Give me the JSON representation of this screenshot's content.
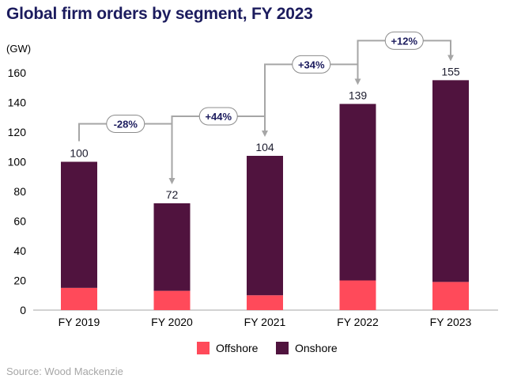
{
  "title": "Global firm orders by segment, FY 2023",
  "source": "Source: Wood Mackenzie",
  "chart_data": {
    "type": "bar",
    "stacked": true,
    "title": "Global firm orders by segment, FY 2023",
    "ylabel": "(GW)",
    "ylim": [
      0,
      160
    ],
    "yticks": [
      0,
      20,
      40,
      60,
      80,
      100,
      120,
      140,
      160
    ],
    "categories": [
      "FY 2019",
      "FY 2020",
      "FY 2021",
      "FY 2022",
      "FY 2023"
    ],
    "series": [
      {
        "name": "Offshore",
        "color": "#ff4a5a",
        "values": [
          15,
          13,
          10,
          20,
          19
        ]
      },
      {
        "name": "Onshore",
        "color": "#50133e",
        "values": [
          85,
          59,
          94,
          119,
          136
        ]
      }
    ],
    "totals": [
      100,
      72,
      104,
      139,
      155
    ],
    "total_labels": [
      "100",
      "72",
      "104",
      "139",
      "155"
    ],
    "changes": [
      "-28%",
      "+44%",
      "+34%",
      "+12%"
    ],
    "grid": false,
    "legend_position": "bottom"
  }
}
